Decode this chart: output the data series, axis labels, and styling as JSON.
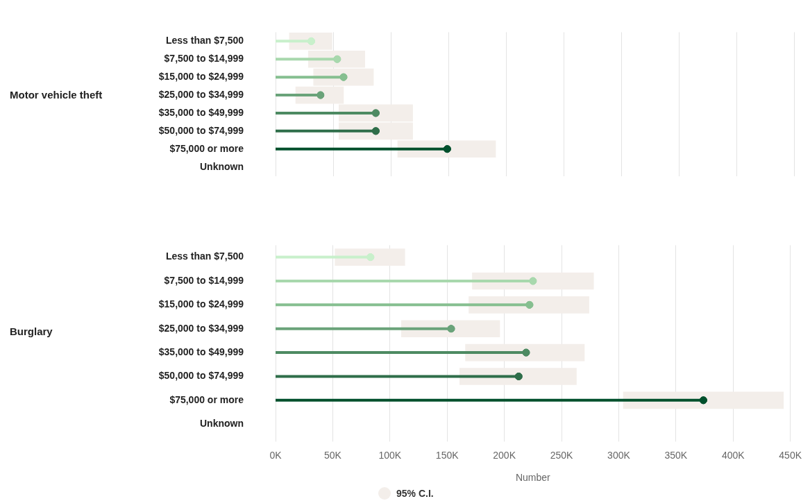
{
  "chart_data": [
    {
      "type": "lollipop",
      "orientation": "horizontal",
      "ylabel": "Motor vehicle theft",
      "categories": [
        "Less than $7,500",
        "$7,500 to $14,999",
        "$15,000 to $24,999",
        "$25,000 to $34,999",
        "$35,000 to $49,999",
        "$50,000 to $74,999",
        "$75,000 or more",
        "Unknown"
      ],
      "series": [
        {
          "type": "bar",
          "color": "#f3eeea",
          "base": [
            12000,
            28500,
            33000,
            17500,
            55000,
            55000,
            106000,
            null
          ],
          "values": [
            37000,
            49000,
            52000,
            41500,
            64000,
            64000,
            85000,
            null
          ]
        },
        {
          "type": "lollipop",
          "colors": [
            "#c8f0cb",
            "#a8d8ad",
            "#86bf90",
            "#6aa37a",
            "#4d8a62",
            "#2f6e4a",
            "#00502c",
            "#00502c"
          ],
          "values": [
            31000,
            53500,
            59000,
            39000,
            87000,
            87000,
            149000,
            null
          ]
        }
      ],
      "xlim": [
        0,
        450000
      ],
      "xticks": [
        {
          "value": 0,
          "label": null
        },
        {
          "value": 50000,
          "label": null
        },
        {
          "value": 100000,
          "label": null
        },
        {
          "value": 150000,
          "label": null
        },
        {
          "value": 200000,
          "label": null
        },
        {
          "value": 250000,
          "label": null
        },
        {
          "value": 300000,
          "label": null
        },
        {
          "value": 350000,
          "label": null
        },
        {
          "value": 400000,
          "label": null
        },
        {
          "value": 450000,
          "label": null
        }
      ],
      "grid": "x",
      "tick_labels": "y"
    },
    {
      "type": "lollipop",
      "orientation": "horizontal",
      "ylabel": "Burglary",
      "xlabel": "Number",
      "categories": [
        "Less than $7,500",
        "$7,500 to $14,999",
        "$15,000 to $24,999",
        "$25,000 to $34,999",
        "$35,000 to $49,999",
        "$50,000 to $74,999",
        "$75,000 or more",
        "Unknown"
      ],
      "series": [
        {
          "type": "bar",
          "name": "95% C.I.",
          "color": "#f3eeea",
          "base": [
            52000,
            172000,
            169000,
            110000,
            166000,
            161000,
            304000,
            null
          ],
          "values": [
            61000,
            106000,
            105000,
            86000,
            104000,
            102000,
            140000,
            null
          ]
        },
        {
          "type": "lollipop",
          "colors": [
            "#c8f0cb",
            "#a8d8ad",
            "#86bf90",
            "#6aa37a",
            "#4d8a62",
            "#2f6e4a",
            "#00502c",
            "#00502c"
          ],
          "values": [
            83000,
            225000,
            222000,
            153500,
            219000,
            212500,
            374000,
            null
          ]
        }
      ],
      "xlim": [
        0,
        450000
      ],
      "xticks": [
        {
          "value": 0,
          "label": "0K"
        },
        {
          "value": 50000,
          "label": "50K"
        },
        {
          "value": 100000,
          "label": "100K"
        },
        {
          "value": 150000,
          "label": "150K"
        },
        {
          "value": 200000,
          "label": "200K"
        },
        {
          "value": 250000,
          "label": "250K"
        },
        {
          "value": 300000,
          "label": "300K"
        },
        {
          "value": 350000,
          "label": "350K"
        },
        {
          "value": 400000,
          "label": "400K"
        },
        {
          "value": 450000,
          "label": "450K"
        }
      ],
      "grid": "x",
      "legend": "bottom"
    }
  ]
}
